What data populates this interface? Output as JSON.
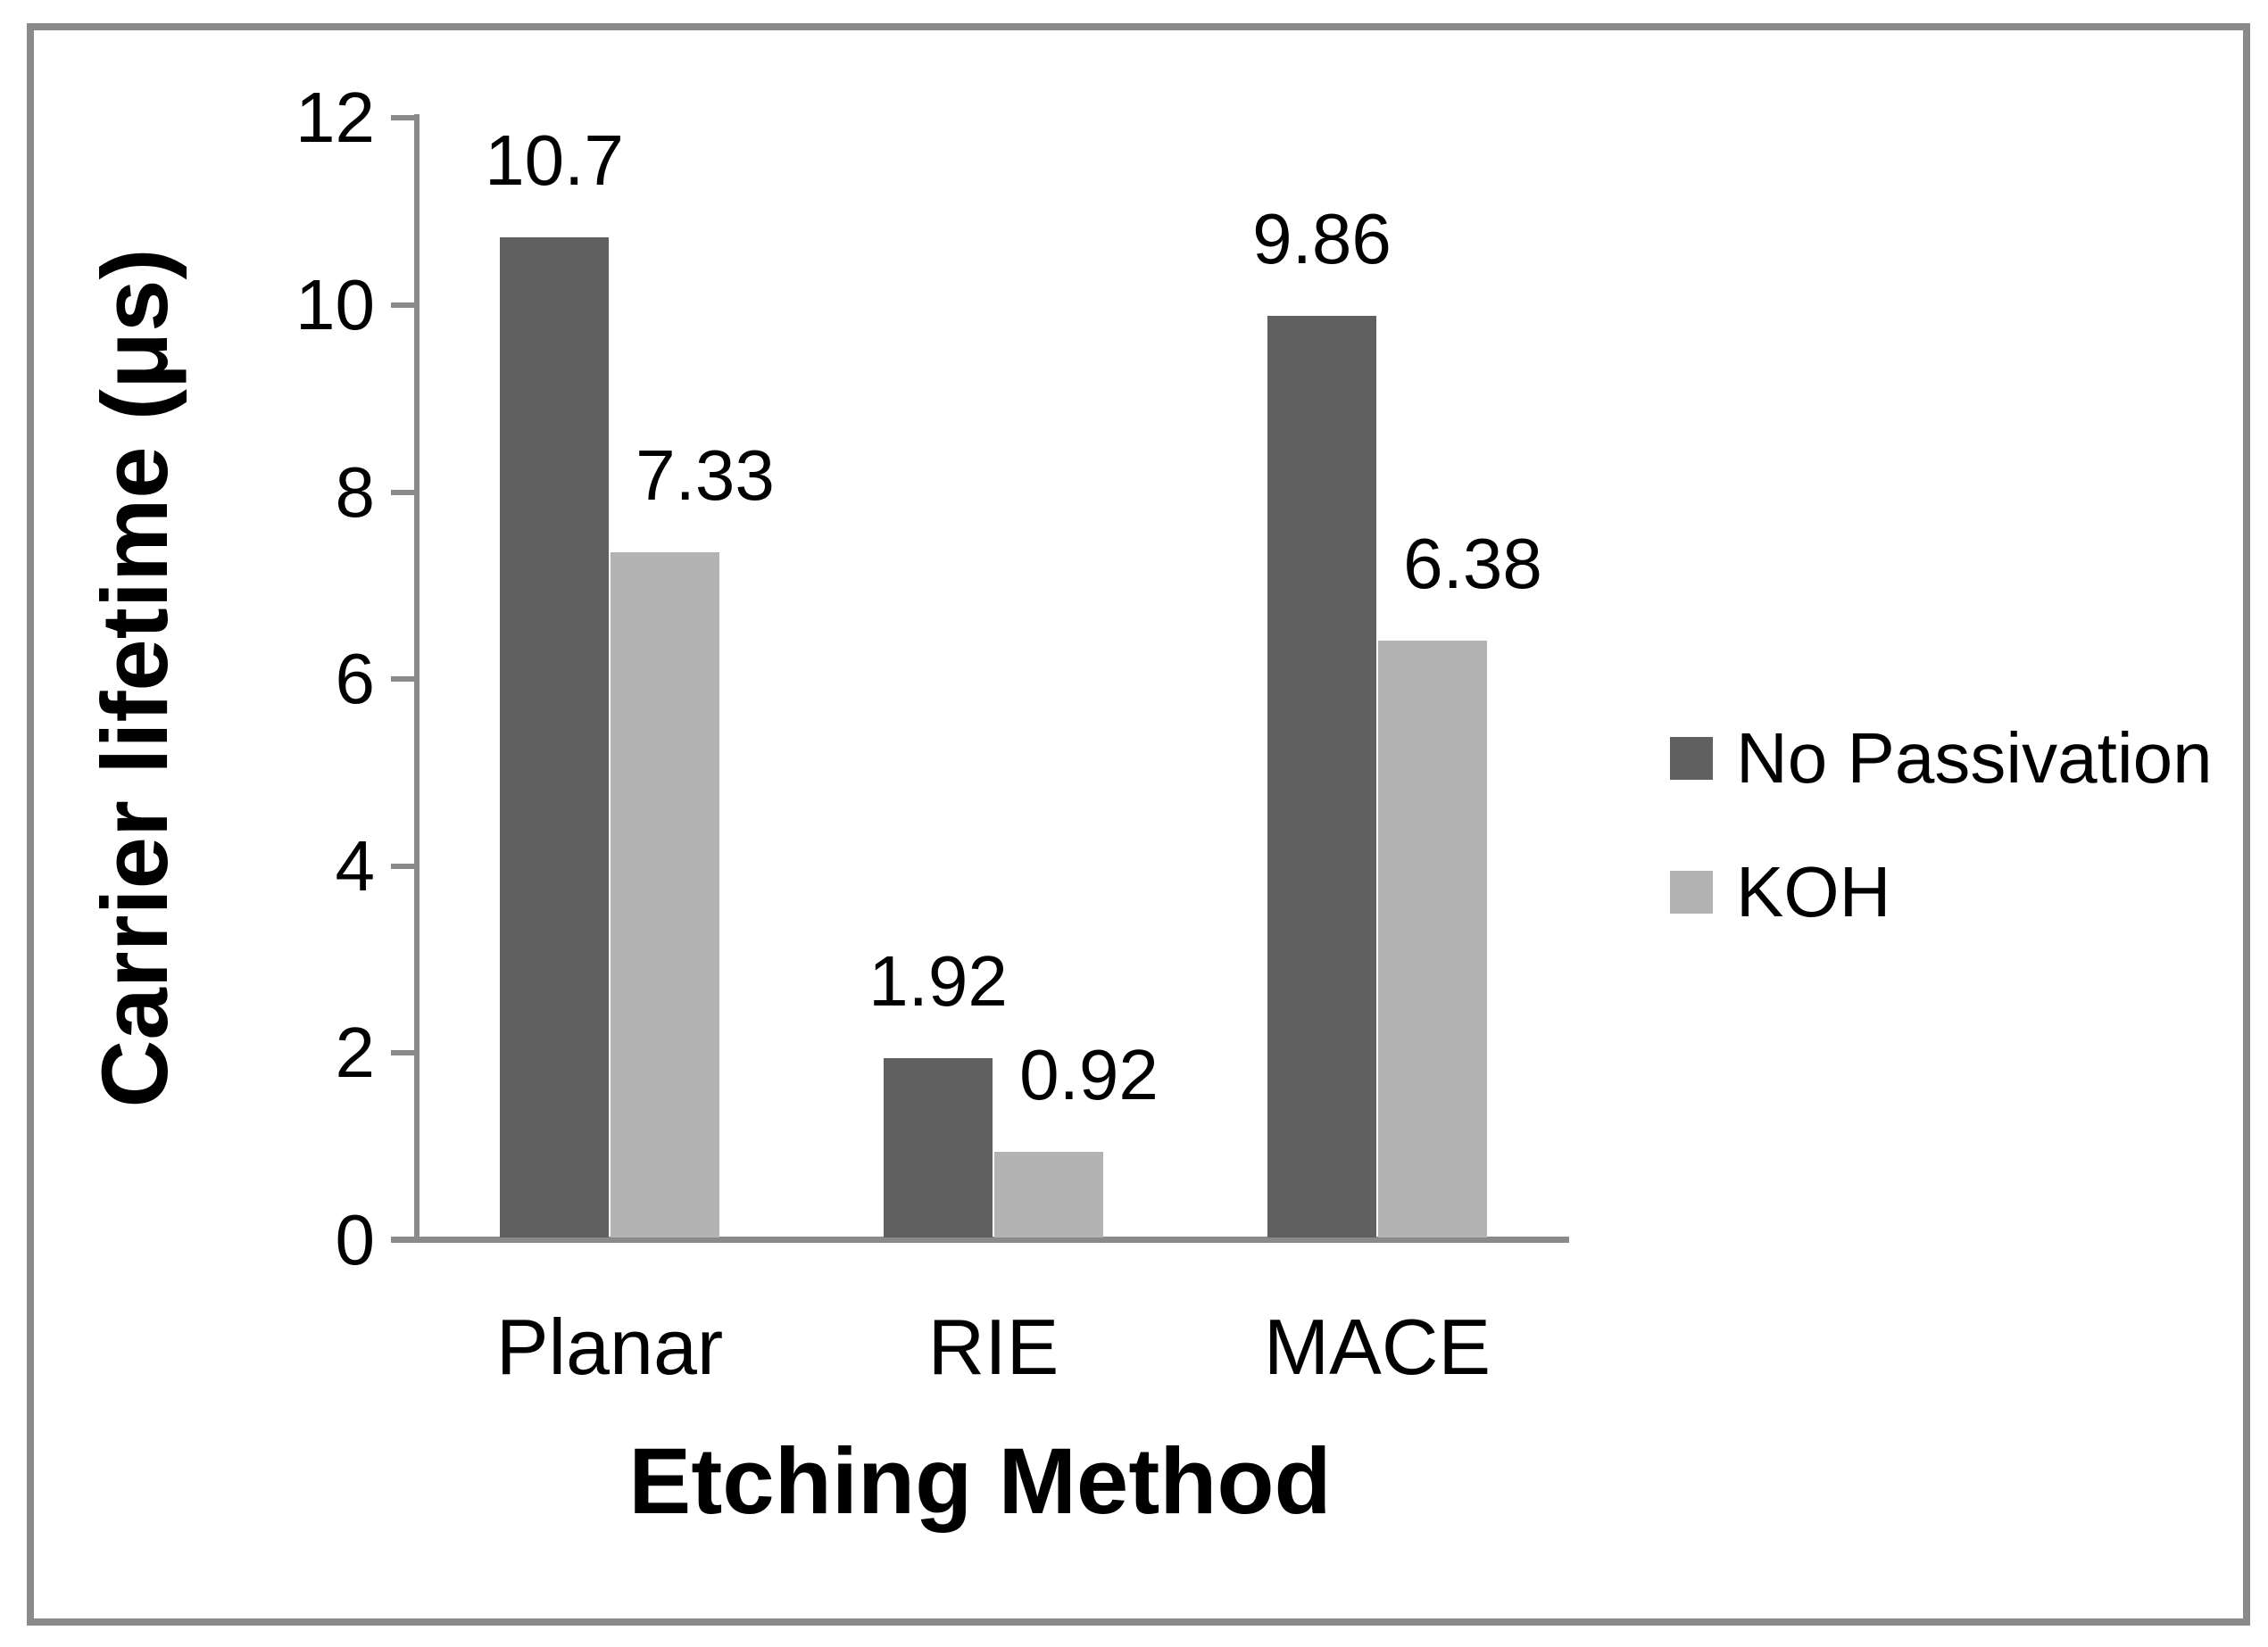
{
  "figure": {
    "border_color": "#8a8a8a",
    "background": "#ffffff"
  },
  "chart_data": {
    "type": "bar",
    "title": "",
    "xlabel": "Etching Method",
    "ylabel": "Carrier lifetime (μs)",
    "categories": [
      "Planar",
      "RIE",
      "MACE"
    ],
    "series": [
      {
        "name": "No Passivation",
        "color": "#606060",
        "values": [
          10.7,
          1.92,
          9.86
        ],
        "data_labels": [
          "10.7",
          "1.92",
          "9.86"
        ]
      },
      {
        "name": "KOH",
        "color": "#b3b3b3",
        "values": [
          7.33,
          0.92,
          6.38
        ],
        "data_labels": [
          "7.33",
          "0.92",
          "6.38"
        ]
      }
    ],
    "ylim": [
      0,
      12
    ],
    "yticks": [
      0,
      2,
      4,
      6,
      8,
      10,
      12
    ],
    "legend_position": "right",
    "grid": false,
    "axis_color": "#8a8a8a",
    "text_color": "#000000"
  }
}
